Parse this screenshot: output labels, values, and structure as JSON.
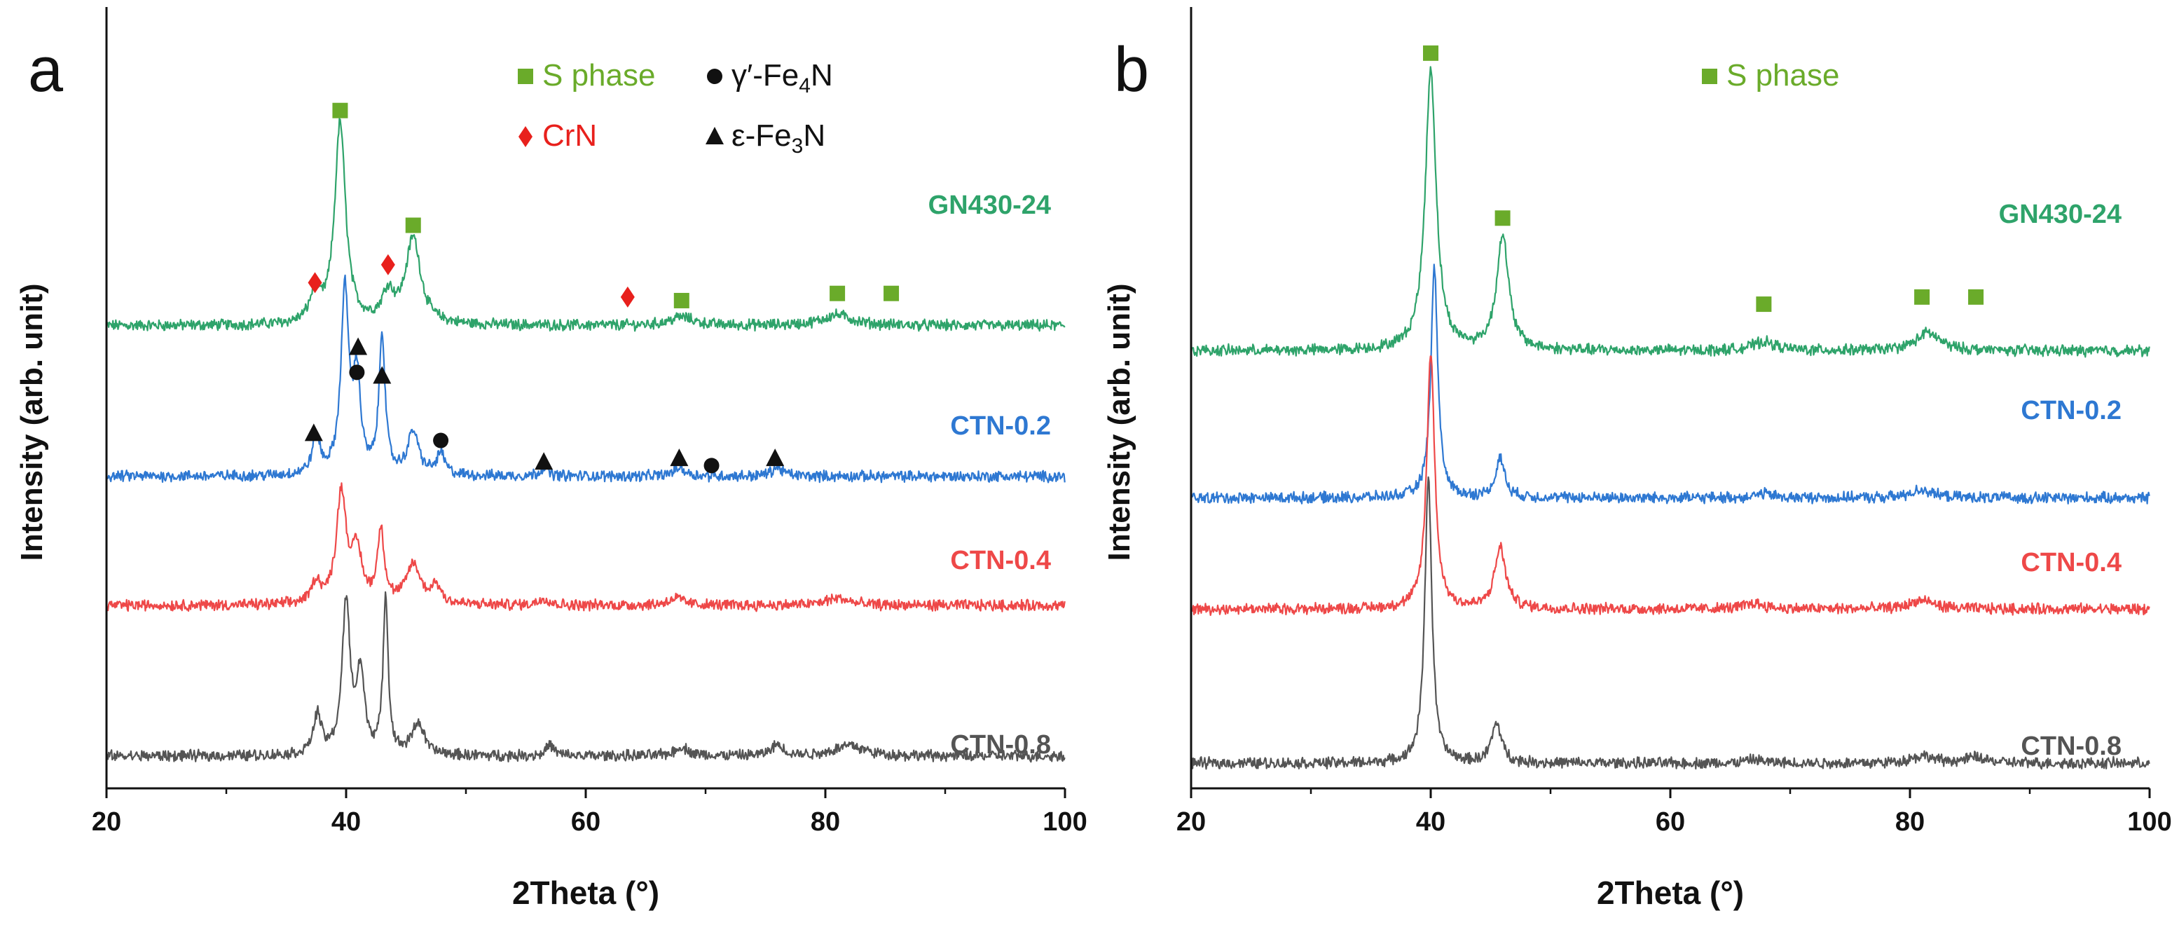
{
  "chart_data": [
    {
      "type": "line",
      "panel_label": "a",
      "xlabel": "2Theta (°)",
      "ylabel": "Intensity (arb. unit)",
      "xlim": [
        20,
        100
      ],
      "xticks": [
        "20",
        "40",
        "60",
        "80",
        "100"
      ],
      "ylim": [
        0,
        10.6
      ],
      "grid": false,
      "series": [
        {
          "name": "GN430-24",
          "color": "#2ea36a",
          "baseline": 6.45,
          "peaks": [
            {
              "x": 37.4,
              "h": 0.4,
              "w": 0.5
            },
            {
              "x": 39.5,
              "h": 2.8,
              "w": 0.55
            },
            {
              "x": 43.5,
              "h": 0.4,
              "w": 0.6
            },
            {
              "x": 45.6,
              "h": 1.2,
              "w": 0.75
            },
            {
              "x": 68,
              "h": 0.12,
              "w": 1.2
            },
            {
              "x": 81,
              "h": 0.15,
              "w": 1.5
            }
          ]
        },
        {
          "name": "CTN-0.2",
          "color": "#2e78d2",
          "baseline": 4.35,
          "peaks": [
            {
              "x": 37.5,
              "h": 0.5,
              "w": 0.4
            },
            {
              "x": 39.9,
              "h": 2.55,
              "w": 0.4
            },
            {
              "x": 40.9,
              "h": 1.3,
              "w": 0.35
            },
            {
              "x": 43.0,
              "h": 1.95,
              "w": 0.3
            },
            {
              "x": 45.6,
              "h": 0.6,
              "w": 0.55
            },
            {
              "x": 47.9,
              "h": 0.3,
              "w": 0.4
            },
            {
              "x": 56.5,
              "h": 0.12,
              "w": 0.4
            },
            {
              "x": 67.8,
              "h": 0.12,
              "w": 0.6
            },
            {
              "x": 76,
              "h": 0.12,
              "w": 0.6
            }
          ]
        },
        {
          "name": "CTN-0.4",
          "color": "#ee4848",
          "baseline": 2.55,
          "peaks": [
            {
              "x": 37.5,
              "h": 0.3,
              "w": 0.45
            },
            {
              "x": 39.6,
              "h": 1.55,
              "w": 0.5
            },
            {
              "x": 40.9,
              "h": 0.7,
              "w": 0.5
            },
            {
              "x": 42.9,
              "h": 1.0,
              "w": 0.35
            },
            {
              "x": 45.6,
              "h": 0.55,
              "w": 0.7
            },
            {
              "x": 47.5,
              "h": 0.25,
              "w": 0.5
            },
            {
              "x": 56.5,
              "h": 0.1,
              "w": 0.5
            },
            {
              "x": 67.5,
              "h": 0.1,
              "w": 0.8
            },
            {
              "x": 81,
              "h": 0.1,
              "w": 1.2
            }
          ]
        },
        {
          "name": "CTN-0.8",
          "color": "#545454",
          "baseline": 0.45,
          "peaks": [
            {
              "x": 37.6,
              "h": 0.55,
              "w": 0.4
            },
            {
              "x": 40.0,
              "h": 2.1,
              "w": 0.4
            },
            {
              "x": 41.2,
              "h": 1.1,
              "w": 0.4
            },
            {
              "x": 43.3,
              "h": 2.2,
              "w": 0.25
            },
            {
              "x": 46.0,
              "h": 0.45,
              "w": 0.6
            },
            {
              "x": 57,
              "h": 0.15,
              "w": 0.4
            },
            {
              "x": 68,
              "h": 0.12,
              "w": 0.7
            },
            {
              "x": 76,
              "h": 0.15,
              "w": 0.6
            },
            {
              "x": 82,
              "h": 0.15,
              "w": 1.5
            }
          ]
        }
      ],
      "legend": [
        {
          "symbol": "square",
          "color": "#6aab2a",
          "label": "S phase"
        },
        {
          "symbol": "circle",
          "color": "#111111",
          "label": "γ′-Fe",
          "sub": "4",
          "tail": "N"
        },
        {
          "symbol": "diamond",
          "color": "#e8201c",
          "label": "CrN"
        },
        {
          "symbol": "triangle",
          "color": "#111111",
          "label": "ε-Fe",
          "sub": "3",
          "tail": "N"
        }
      ],
      "markers": [
        {
          "symbol": "square",
          "x": 39.5,
          "y": 9.45
        },
        {
          "symbol": "square",
          "x": 45.6,
          "y": 7.85
        },
        {
          "symbol": "square",
          "x": 68,
          "y": 6.8
        },
        {
          "symbol": "square",
          "x": 81,
          "y": 6.9
        },
        {
          "symbol": "square",
          "x": 85.5,
          "y": 6.9
        },
        {
          "symbol": "diamond",
          "x": 37.4,
          "y": 7.05
        },
        {
          "symbol": "diamond",
          "x": 43.5,
          "y": 7.3
        },
        {
          "symbol": "diamond",
          "x": 63.5,
          "y": 6.85
        },
        {
          "symbol": "triangle",
          "x": 41.0,
          "y": 6.15
        },
        {
          "symbol": "circle",
          "x": 40.9,
          "y": 5.8
        },
        {
          "symbol": "triangle",
          "x": 43.0,
          "y": 5.75
        },
        {
          "symbol": "triangle",
          "x": 37.3,
          "y": 4.95
        },
        {
          "symbol": "circle",
          "x": 47.9,
          "y": 4.85
        },
        {
          "symbol": "triangle",
          "x": 56.5,
          "y": 4.55
        },
        {
          "symbol": "triangle",
          "x": 67.8,
          "y": 4.6
        },
        {
          "symbol": "circle",
          "x": 70.5,
          "y": 4.5
        },
        {
          "symbol": "triangle",
          "x": 75.8,
          "y": 4.6
        }
      ]
    },
    {
      "type": "line",
      "panel_label": "b",
      "xlabel": "2Theta (°)",
      "ylabel": "Intensity (arb. unit)",
      "xlim": [
        20,
        100
      ],
      "xticks": [
        "20",
        "40",
        "60",
        "80",
        "100"
      ],
      "ylim": [
        0,
        10.6
      ],
      "grid": false,
      "series": [
        {
          "name": "GN430-24",
          "color": "#2ea36a",
          "baseline": 6.1,
          "peaks": [
            {
              "x": 40.0,
              "h": 3.9,
              "w": 0.55
            },
            {
              "x": 46.0,
              "h": 1.6,
              "w": 0.6
            },
            {
              "x": 67.8,
              "h": 0.12,
              "w": 1.2
            },
            {
              "x": 81.5,
              "h": 0.25,
              "w": 1.2
            }
          ]
        },
        {
          "name": "CTN-0.2",
          "color": "#2e78d2",
          "baseline": 4.05,
          "peaks": [
            {
              "x": 40.3,
              "h": 3.2,
              "w": 0.35
            },
            {
              "x": 45.8,
              "h": 0.55,
              "w": 0.45
            },
            {
              "x": 67.8,
              "h": 0.06,
              "w": 0.8
            },
            {
              "x": 81,
              "h": 0.12,
              "w": 1.0
            }
          ]
        },
        {
          "name": "CTN-0.4",
          "color": "#ee4848",
          "baseline": 2.5,
          "peaks": [
            {
              "x": 40.0,
              "h": 3.55,
              "w": 0.4
            },
            {
              "x": 45.8,
              "h": 0.85,
              "w": 0.55
            },
            {
              "x": 67,
              "h": 0.08,
              "w": 1.0
            },
            {
              "x": 81,
              "h": 0.12,
              "w": 1.2
            }
          ]
        },
        {
          "name": "CTN-0.8",
          "color": "#545454",
          "baseline": 0.35,
          "peaks": [
            {
              "x": 39.8,
              "h": 4.0,
              "w": 0.35
            },
            {
              "x": 45.5,
              "h": 0.55,
              "w": 0.5
            },
            {
              "x": 67,
              "h": 0.05,
              "w": 0.8
            },
            {
              "x": 81,
              "h": 0.1,
              "w": 1.2
            },
            {
              "x": 85.5,
              "h": 0.08,
              "w": 1.0
            }
          ]
        }
      ],
      "legend": [
        {
          "symbol": "square",
          "color": "#6aab2a",
          "label": "S phase"
        }
      ],
      "markers": [
        {
          "symbol": "square",
          "x": 40.0,
          "y": 10.25
        },
        {
          "symbol": "square",
          "x": 46.0,
          "y": 7.95
        },
        {
          "symbol": "square",
          "x": 67.8,
          "y": 6.75
        },
        {
          "symbol": "square",
          "x": 81,
          "y": 6.85
        },
        {
          "symbol": "square",
          "x": 85.5,
          "y": 6.85
        }
      ]
    }
  ]
}
